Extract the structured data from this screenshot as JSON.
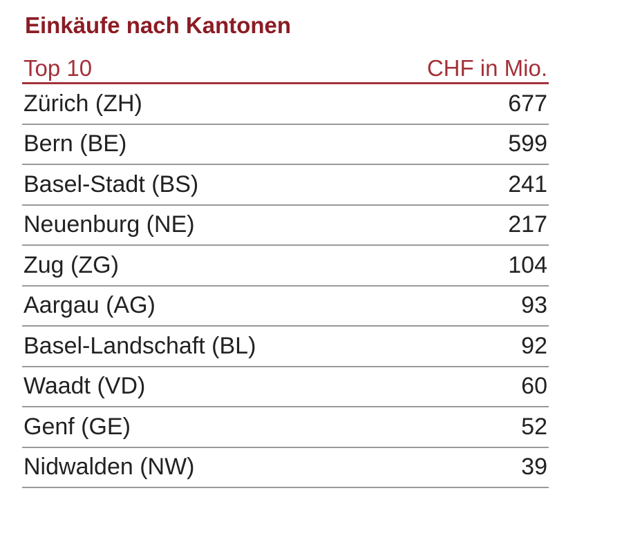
{
  "title": "Einkäufe nach Kantonen",
  "table": {
    "header": [
      "Top 10",
      "CHF in Mio."
    ],
    "rows": [
      [
        "Zürich (ZH)",
        677
      ],
      [
        "Bern (BE)",
        599
      ],
      [
        "Basel-Stadt (BS)",
        241
      ],
      [
        "Neuenburg (NE)",
        217
      ],
      [
        "Zug (ZG)",
        104
      ],
      [
        "Aargau (AG)",
        93
      ],
      [
        "Basel-Landschaft (BL)",
        92
      ],
      [
        "Waadt (VD)",
        60
      ],
      [
        "Genf (GE)",
        52
      ],
      [
        "Nidwalden (NW)",
        39
      ]
    ]
  }
}
